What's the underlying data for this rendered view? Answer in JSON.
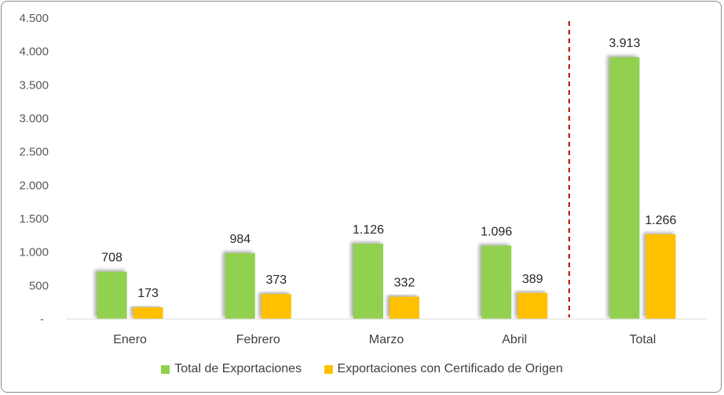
{
  "chart_data": {
    "type": "bar",
    "categories": [
      "Enero",
      "Febrero",
      "Marzo",
      "Abril",
      "Total"
    ],
    "series": [
      {
        "name": "Total de Exportaciones",
        "values": [
          708,
          984,
          1126,
          1096,
          3913
        ],
        "labels": [
          "708",
          "984",
          "1.126",
          "1.096",
          "3.913"
        ],
        "color": "#92d050"
      },
      {
        "name": "Exportaciones con Certificado de Origen",
        "values": [
          173,
          373,
          332,
          389,
          1266
        ],
        "labels": [
          "173",
          "373",
          "332",
          "389",
          "1.266"
        ],
        "color": "#ffc000"
      }
    ],
    "y_ticks": [
      {
        "value": 0,
        "label": "-"
      },
      {
        "value": 500,
        "label": "500"
      },
      {
        "value": 1000,
        "label": "1.000"
      },
      {
        "value": 1500,
        "label": "1.500"
      },
      {
        "value": 2000,
        "label": "2.000"
      },
      {
        "value": 2500,
        "label": "2.500"
      },
      {
        "value": 3000,
        "label": "3.000"
      },
      {
        "value": 3500,
        "label": "3.500"
      },
      {
        "value": 4000,
        "label": "4.000"
      },
      {
        "value": 4500,
        "label": "4.500"
      }
    ],
    "ylim": [
      0,
      4500
    ],
    "grid": false,
    "legend_position": "bottom",
    "separator": {
      "after_category": "Abril",
      "style": "dashed",
      "color": "#c00000"
    }
  }
}
